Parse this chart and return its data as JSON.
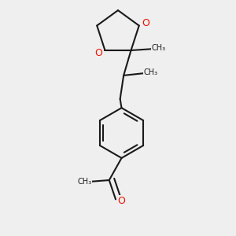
{
  "bg_color": "#efefef",
  "bond_color": "#1a1a1a",
  "oxygen_color": "#ee1100",
  "lw": 1.5,
  "dbo": 0.012,
  "atoms": {
    "O1_label": "O",
    "O2_label": "O",
    "Oke_label": "O"
  }
}
